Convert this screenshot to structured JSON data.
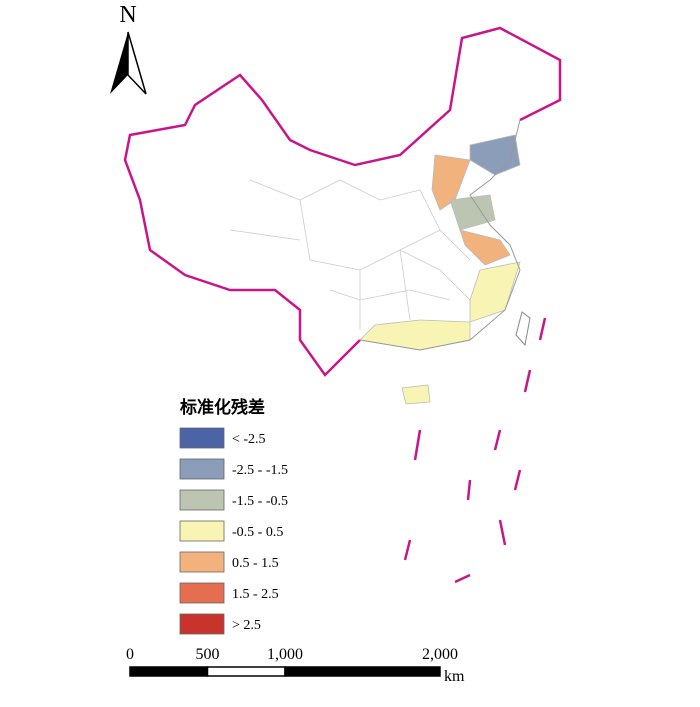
{
  "north_label": "N",
  "legend": {
    "title": "标准化残差",
    "items": [
      {
        "label": "< -2.5",
        "color": "#4a64a6"
      },
      {
        "label": "-2.5 - -1.5",
        "color": "#8b9db8"
      },
      {
        "label": "-1.5 - -0.5",
        "color": "#bcc5b2"
      },
      {
        "label": "-0.5 - 0.5",
        "color": "#f8f5b4"
      },
      {
        "label": "0.5 - 1.5",
        "color": "#f2b27e"
      },
      {
        "label": "1.5 - 2.5",
        "color": "#e46e4f"
      },
      {
        "label": "> 2.5",
        "color": "#c8342c"
      }
    ]
  },
  "scale_bar": {
    "ticks": [
      0,
      500,
      {
        "value": 1000,
        "label": "1,000"
      },
      {
        "value": 2000,
        "label": "2,000"
      }
    ],
    "unit": "km"
  }
}
